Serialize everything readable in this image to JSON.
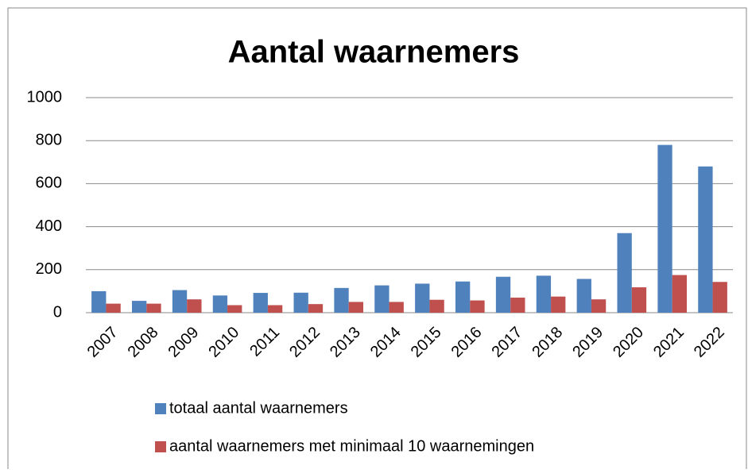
{
  "chart_data": {
    "type": "bar",
    "title": "Aantal waarnemers",
    "categories": [
      "2007",
      "2008",
      "2009",
      "2010",
      "2011",
      "2012",
      "2013",
      "2014",
      "2015",
      "2016",
      "2017",
      "2018",
      "2019",
      "2020",
      "2021",
      "2022"
    ],
    "series": [
      {
        "name": "totaal aantal waarnemers",
        "color": "#4f81bd",
        "values": [
          100,
          55,
          105,
          80,
          92,
          93,
          115,
          127,
          135,
          145,
          167,
          172,
          157,
          370,
          780,
          680
        ]
      },
      {
        "name": "aantal waarnemers met minimaal 10 waarnemingen",
        "color": "#c0504d",
        "values": [
          42,
          42,
          62,
          35,
          35,
          40,
          50,
          50,
          60,
          57,
          70,
          75,
          62,
          118,
          175,
          143
        ]
      }
    ],
    "ylim": [
      0,
      1000
    ],
    "yticks": [
      0,
      200,
      400,
      600,
      800,
      1000
    ],
    "grid": true,
    "legend": "bottom"
  }
}
